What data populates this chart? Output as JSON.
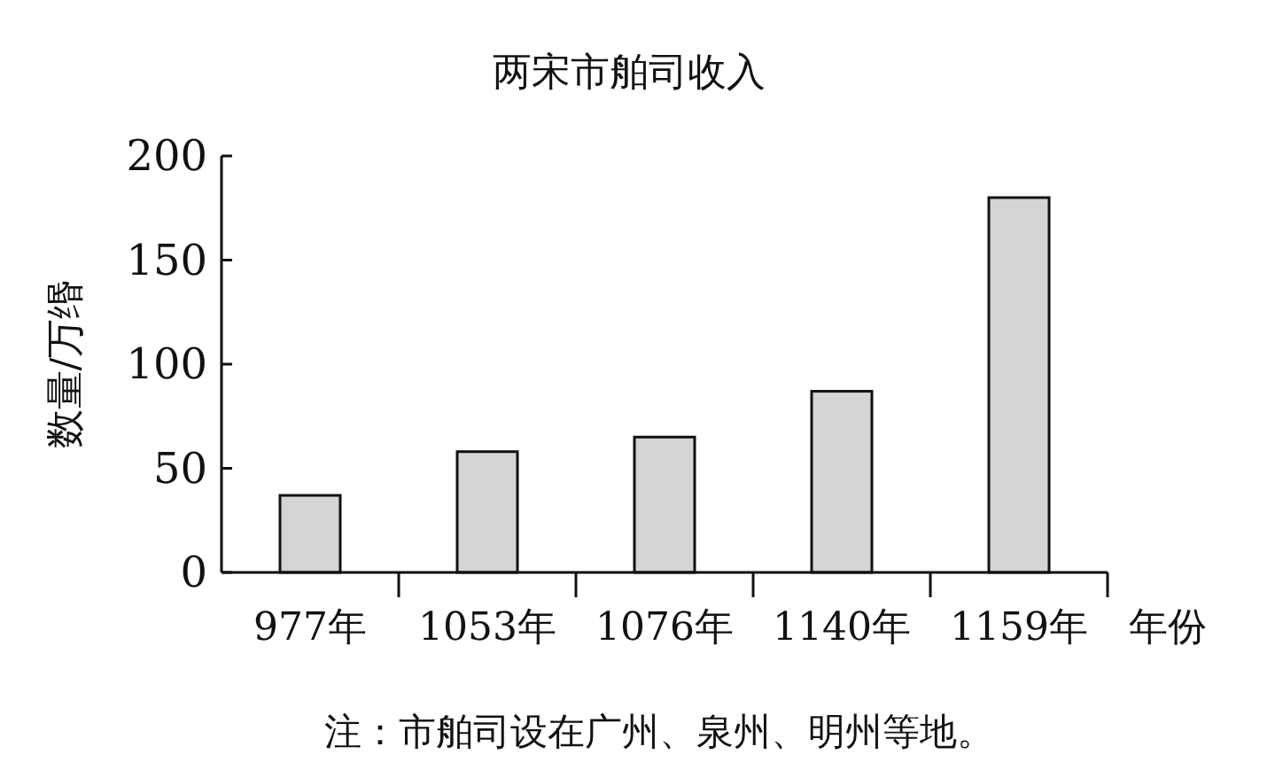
{
  "chart_data": {
    "type": "bar",
    "title": "两宋市舶司收入",
    "ylabel": "数量/万缗",
    "xlabel": "年份",
    "categories": [
      "977年",
      "1053年",
      "1076年",
      "1140年",
      "1159年"
    ],
    "values": [
      37,
      58,
      65,
      87,
      180
    ],
    "color": "#d4d4d4",
    "ylim": [
      0,
      200
    ],
    "yticks": [
      0,
      50,
      100,
      150,
      200
    ],
    "annotations": [
      "注：市舶司设在广州、泉州、明州等地。"
    ]
  }
}
